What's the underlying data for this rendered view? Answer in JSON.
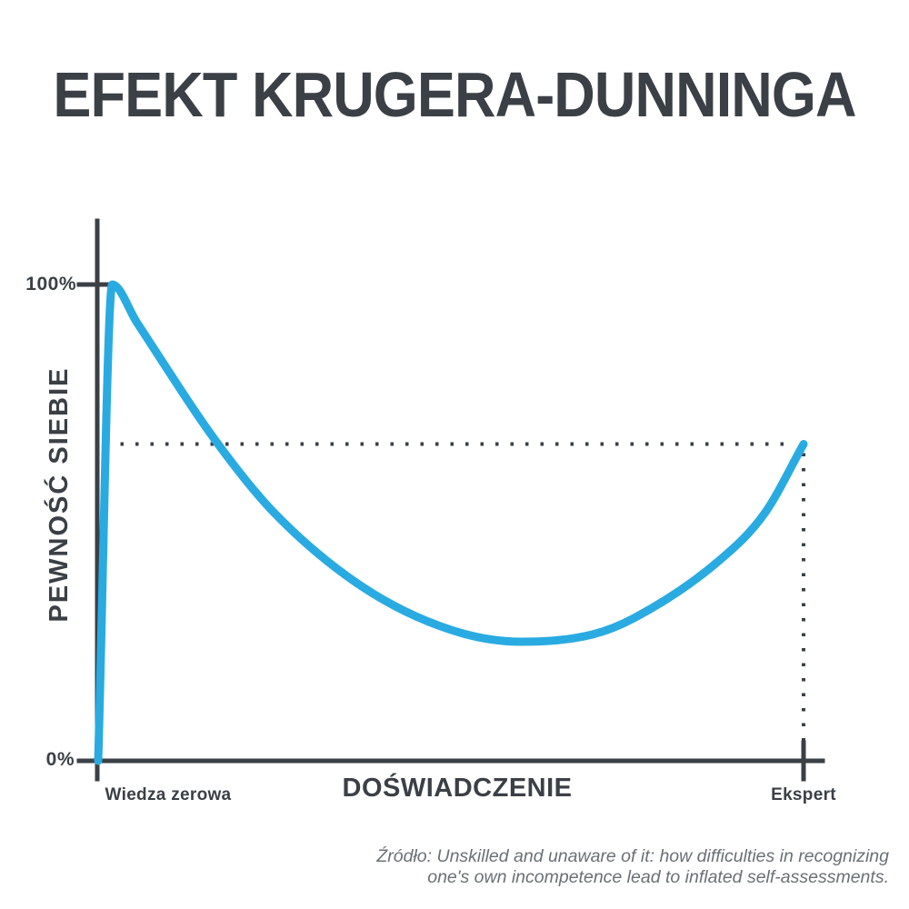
{
  "title": "EFEKT KRUGERA-DUNNINGA",
  "colors": {
    "accent": "#29abe2",
    "dark": "#3b4046",
    "muted": "#6b7076",
    "background": "#ffffff"
  },
  "chart_data": {
    "type": "line",
    "title": "EFEKT KRUGERA-DUNNINGA",
    "xlabel": "DOŚWIADCZENIE",
    "ylabel": "PEWNOŚĆ SIEBIE",
    "xlim": [
      0,
      100
    ],
    "ylim": [
      0,
      100
    ],
    "grid": false,
    "legend": null,
    "x_tick_labels": [
      "Wiedza zerowa",
      "Ekspert"
    ],
    "y_tick_labels": [
      "0%",
      "100%"
    ],
    "series": [
      {
        "name": "Pewność siebie",
        "color": "#29abe2",
        "points": [
          [
            0,
            0
          ],
          [
            2,
            100
          ],
          [
            5.5,
            92
          ],
          [
            17,
            66.5
          ],
          [
            25,
            52
          ],
          [
            37.5,
            36.5
          ],
          [
            50,
            27.5
          ],
          [
            60,
            25
          ],
          [
            70,
            26.5
          ],
          [
            76,
            30
          ],
          [
            88,
            42
          ],
          [
            94.5,
            52
          ],
          [
            100,
            66.5
          ]
        ]
      }
    ],
    "guide_lines": {
      "style": "dotted",
      "horizontal_at_confidence": 66.5,
      "vertical_at_experience": 100
    },
    "annotations": {
      "start": {
        "experience_label": "Wiedza zerowa",
        "confidence": 0
      },
      "peak": {
        "confidence": 100
      },
      "end": {
        "experience_label": "Ekspert",
        "confidence": 66.5
      }
    }
  },
  "source": {
    "line1": "Źródło: Unskilled and unaware of it: how difficulties in recognizing",
    "line2": "one's own incompetence lead to inflated self-assessments."
  }
}
